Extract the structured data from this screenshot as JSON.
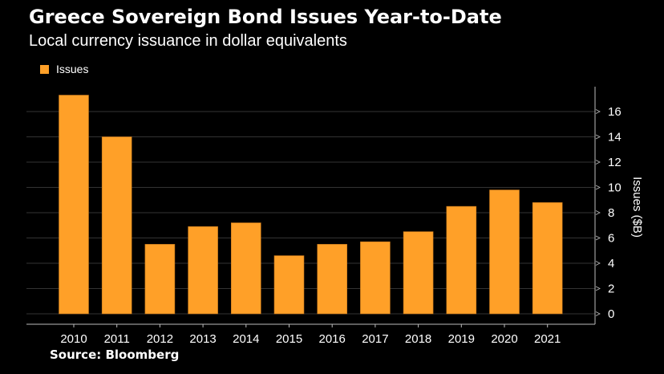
{
  "title": "Greece Sovereign Bond Issues Year-to-Date",
  "subtitle": "Local currency issuance in dollar equivalents",
  "source": "Source: Bloomberg",
  "colors": {
    "bar": "#ffa028",
    "background": "#000000",
    "grid": "#333333",
    "axis": "#bbbbbb"
  },
  "chart_data": {
    "type": "bar",
    "title": "Greece Sovereign Bond Issues Year-to-Date",
    "subtitle": "Local currency issuance in dollar equivalents",
    "categories": [
      "2010",
      "2011",
      "2012",
      "2013",
      "2014",
      "2015",
      "2016",
      "2017",
      "2018",
      "2019",
      "2020",
      "2021"
    ],
    "series": [
      {
        "name": "Issues",
        "values": [
          17.3,
          14.0,
          5.5,
          6.9,
          7.2,
          4.6,
          5.5,
          5.7,
          6.5,
          8.5,
          9.8,
          8.8
        ]
      }
    ],
    "legend": {
      "entries": [
        "Issues"
      ],
      "position": "top-left"
    },
    "xlabel": "",
    "ylabel": "Issues ($B)",
    "ylim": [
      0,
      18
    ],
    "yticks": [
      0,
      2,
      4,
      6,
      8,
      10,
      12,
      14,
      16
    ],
    "y_axis_side": "right",
    "grid": true
  }
}
